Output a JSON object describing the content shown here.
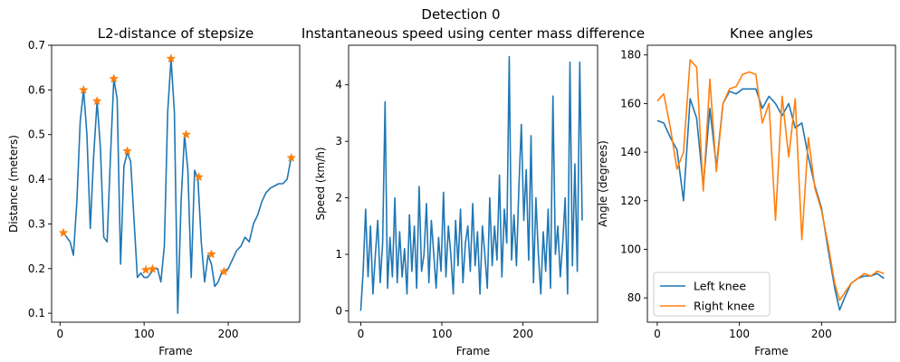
{
  "figure_title": "Detection 0",
  "chart_data": [
    {
      "type": "line",
      "title": "L2-distance of stepsize",
      "xlabel": "Frame",
      "ylabel": "Distance (meters)",
      "xlim": [
        -10,
        285
      ],
      "ylim": [
        0.08,
        0.7
      ],
      "xticks": [
        0,
        100,
        200
      ],
      "yticks": [
        0.1,
        0.2,
        0.3,
        0.4,
        0.5,
        0.6,
        0.7
      ],
      "grid": false,
      "series": [
        {
          "color": "#1f77b4",
          "x": [
            4,
            8,
            12,
            16,
            20,
            24,
            28,
            32,
            36,
            40,
            44,
            48,
            52,
            56,
            60,
            64,
            68,
            72,
            76,
            80,
            84,
            88,
            92,
            96,
            100,
            104,
            108,
            112,
            116,
            120,
            124,
            128,
            132,
            136,
            140,
            144,
            148,
            152,
            156,
            160,
            164,
            168,
            172,
            176,
            180,
            184,
            188,
            192,
            196,
            200,
            205,
            210,
            215,
            220,
            225,
            230,
            235,
            240,
            245,
            250,
            255,
            260,
            265,
            270,
            275
          ],
          "y": [
            0.28,
            0.27,
            0.26,
            0.23,
            0.35,
            0.53,
            0.6,
            0.5,
            0.29,
            0.45,
            0.575,
            0.47,
            0.27,
            0.26,
            0.45,
            0.625,
            0.58,
            0.21,
            0.43,
            0.46,
            0.44,
            0.31,
            0.18,
            0.19,
            0.18,
            0.18,
            0.19,
            0.2,
            0.2,
            0.17,
            0.25,
            0.55,
            0.67,
            0.55,
            0.1,
            0.35,
            0.5,
            0.42,
            0.18,
            0.42,
            0.4,
            0.26,
            0.17,
            0.23,
            0.21,
            0.16,
            0.17,
            0.19,
            0.195,
            0.2,
            0.22,
            0.24,
            0.25,
            0.27,
            0.26,
            0.3,
            0.32,
            0.35,
            0.37,
            0.38,
            0.385,
            0.39,
            0.39,
            0.4,
            0.45
          ]
        },
        {
          "color": "#ff7f0e",
          "marker": "star",
          "x": [
            4,
            28,
            44,
            64,
            80,
            102,
            110,
            132,
            150,
            165,
            180,
            195,
            275
          ],
          "y": [
            0.28,
            0.6,
            0.575,
            0.625,
            0.463,
            0.197,
            0.199,
            0.67,
            0.5,
            0.405,
            0.232,
            0.193,
            0.448
          ]
        }
      ]
    },
    {
      "type": "line",
      "title": "Instantaneous speed using center mass difference",
      "xlabel": "Frame",
      "ylabel": "Speed (km/h)",
      "xlim": [
        -15,
        292
      ],
      "ylim": [
        -0.2,
        4.7
      ],
      "xticks": [
        0,
        100,
        200
      ],
      "yticks": [
        0,
        1,
        2,
        3,
        4
      ],
      "grid": false,
      "series": [
        {
          "color": "#1f77b4",
          "x": [
            0,
            3,
            6,
            9,
            12,
            15,
            18,
            21,
            24,
            27,
            30,
            33,
            36,
            39,
            42,
            45,
            48,
            51,
            54,
            57,
            60,
            63,
            66,
            69,
            72,
            75,
            78,
            81,
            84,
            87,
            90,
            93,
            96,
            99,
            102,
            105,
            108,
            111,
            114,
            117,
            120,
            123,
            126,
            129,
            132,
            135,
            138,
            141,
            144,
            147,
            150,
            153,
            156,
            159,
            162,
            165,
            168,
            171,
            174,
            177,
            180,
            183,
            186,
            189,
            192,
            195,
            198,
            201,
            204,
            207,
            210,
            213,
            216,
            219,
            222,
            225,
            228,
            231,
            234,
            237,
            240,
            243,
            246,
            249,
            252,
            255,
            258,
            261,
            264,
            267,
            270,
            273
          ],
          "y": [
            0.0,
            0.7,
            1.8,
            0.6,
            1.5,
            0.3,
            1.0,
            1.6,
            0.5,
            1.2,
            3.7,
            0.4,
            1.3,
            0.6,
            2.0,
            0.5,
            1.4,
            0.6,
            1.1,
            0.3,
            1.7,
            0.7,
            1.5,
            0.4,
            2.2,
            0.7,
            1.0,
            1.9,
            0.5,
            1.6,
            1.0,
            0.4,
            1.3,
            0.7,
            2.1,
            0.6,
            1.5,
            1.0,
            0.3,
            1.6,
            0.8,
            1.8,
            0.5,
            1.2,
            1.5,
            0.7,
            1.9,
            0.8,
            1.4,
            0.3,
            1.5,
            1.0,
            0.4,
            2.0,
            0.8,
            1.5,
            0.9,
            2.4,
            0.6,
            1.8,
            1.2,
            4.5,
            0.9,
            1.7,
            0.8,
            2.2,
            3.3,
            1.6,
            2.5,
            0.9,
            3.1,
            0.5,
            2.0,
            1.0,
            0.3,
            1.4,
            0.7,
            1.8,
            0.4,
            3.8,
            1.0,
            1.5,
            0.6,
            1.2,
            2.0,
            0.3,
            4.4,
            0.8,
            2.6,
            0.7,
            4.4,
            1.6
          ]
        }
      ]
    },
    {
      "type": "line",
      "title": "Knee angles",
      "xlabel": "Frame",
      "ylabel": "Angle (degrees)",
      "xlim": [
        -12,
        290
      ],
      "ylim": [
        70,
        184
      ],
      "xticks": [
        0,
        100,
        200
      ],
      "yticks": [
        80,
        100,
        120,
        140,
        160,
        180
      ],
      "grid": false,
      "legend": "lower-left",
      "series": [
        {
          "name": "Left knee",
          "color": "#1f77b4",
          "x": [
            0,
            8,
            16,
            24,
            32,
            40,
            48,
            56,
            64,
            72,
            80,
            88,
            96,
            104,
            112,
            120,
            128,
            136,
            144,
            152,
            160,
            168,
            176,
            184,
            192,
            200,
            208,
            216,
            222,
            228,
            236,
            244,
            252,
            260,
            268,
            276
          ],
          "y": [
            153,
            152,
            146,
            141,
            120,
            162,
            154,
            126,
            158,
            134,
            160,
            165,
            164,
            166,
            166,
            166,
            158,
            163,
            160,
            155,
            160,
            150,
            152,
            138,
            126,
            117,
            100,
            84,
            75,
            80,
            86,
            88,
            89,
            89,
            90,
            88
          ]
        },
        {
          "name": "Right knee",
          "color": "#ff7f0e",
          "x": [
            0,
            8,
            16,
            24,
            32,
            40,
            48,
            56,
            64,
            72,
            80,
            88,
            96,
            104,
            112,
            120,
            128,
            136,
            144,
            152,
            160,
            168,
            176,
            184,
            192,
            200,
            208,
            216,
            222,
            228,
            236,
            244,
            252,
            260,
            268,
            276
          ],
          "y": [
            161,
            164,
            150,
            133,
            140,
            178,
            175,
            124,
            170,
            132,
            160,
            166,
            167,
            172,
            173,
            172,
            152,
            160,
            112,
            163,
            138,
            162,
            104,
            146,
            125,
            116,
            102,
            86,
            79,
            82,
            86,
            88,
            90,
            89,
            91,
            90
          ]
        }
      ]
    }
  ]
}
